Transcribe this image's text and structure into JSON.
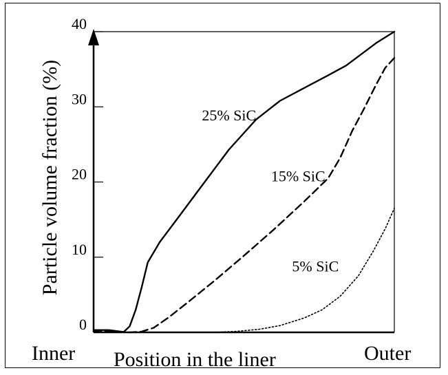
{
  "chart_data": {
    "type": "line",
    "title": "",
    "xlabel": "Position in the liner",
    "ylabel": "Particle volume fraction (%)",
    "xlim": [
      0,
      1
    ],
    "ylim": [
      0,
      40
    ],
    "x_tick_labels": [
      "Inner",
      "Outer"
    ],
    "y_ticks": [
      0,
      10,
      20,
      30,
      40
    ],
    "grid": false,
    "legend": "none",
    "series": [
      {
        "name": "25% SiC",
        "style": "solid",
        "x": [
          0,
          0.05,
          0.1,
          0.12,
          0.14,
          0.16,
          0.18,
          0.22,
          0.28,
          0.36,
          0.45,
          0.54,
          0.62,
          0.7,
          0.78,
          0.84,
          0.89,
          0.94,
          1.0
        ],
        "y": [
          0.3,
          0.3,
          0.05,
          0.8,
          3.0,
          6.0,
          9.3,
          12.0,
          15.2,
          19.5,
          24.3,
          28.3,
          30.8,
          32.5,
          34.2,
          35.5,
          37.0,
          38.5,
          40.0
        ]
      },
      {
        "name": "15% SiC",
        "style": "dashed",
        "x": [
          0,
          0.06,
          0.12,
          0.16,
          0.2,
          0.25,
          0.32,
          0.4,
          0.5,
          0.6,
          0.7,
          0.78,
          0.82,
          0.86,
          0.9,
          0.94,
          0.97,
          1.0
        ],
        "y": [
          0.2,
          0.1,
          0.0,
          0.1,
          0.6,
          2.0,
          4.2,
          6.8,
          10.2,
          13.7,
          17.4,
          20.5,
          23.2,
          26.8,
          29.8,
          33.0,
          35.2,
          36.5
        ]
      },
      {
        "name": "5% SiC",
        "style": "dotted",
        "x": [
          0,
          0.1,
          0.2,
          0.3,
          0.4,
          0.48,
          0.55,
          0.62,
          0.7,
          0.76,
          0.82,
          0.88,
          0.93,
          0.97,
          1.0
        ],
        "y": [
          0.1,
          0.0,
          0.0,
          0.0,
          0.0,
          0.15,
          0.4,
          0.9,
          1.9,
          3.0,
          4.8,
          7.5,
          10.8,
          13.8,
          16.5
        ]
      }
    ],
    "annotations": [
      {
        "text": "25% SiC",
        "x": 0.36,
        "y": 28.2
      },
      {
        "text": "15% SiC",
        "x": 0.59,
        "y": 20.1
      },
      {
        "text": "5% SiC",
        "x": 0.66,
        "y": 8.1
      }
    ]
  }
}
